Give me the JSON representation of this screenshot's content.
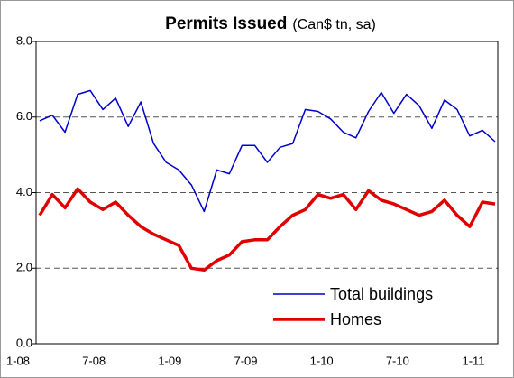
{
  "chart_data": {
    "type": "line",
    "title": "Permits Issued",
    "subtitle": "(Can$ tn, sa)",
    "categories": [
      "1-08",
      null,
      null,
      null,
      null,
      null,
      "7-08",
      null,
      null,
      null,
      null,
      null,
      "1-09",
      null,
      null,
      null,
      null,
      null,
      "7-09",
      null,
      null,
      null,
      null,
      null,
      "1-10",
      null,
      null,
      null,
      null,
      null,
      "7-10",
      null,
      null,
      null,
      null,
      null,
      "1-11"
    ],
    "series": [
      {
        "name": "Total buildings",
        "color": "#0000cc",
        "values": [
          5.9,
          6.05,
          5.6,
          6.6,
          6.7,
          6.2,
          6.5,
          5.75,
          6.4,
          5.3,
          4.8,
          4.6,
          4.2,
          3.5,
          4.6,
          4.5,
          5.25,
          5.25,
          4.8,
          5.2,
          5.3,
          6.2,
          6.15,
          5.95,
          5.6,
          5.45,
          6.15,
          6.65,
          6.1,
          6.6,
          6.3,
          5.7,
          6.45,
          6.2,
          5.5,
          5.65,
          5.35
        ]
      },
      {
        "name": "Homes",
        "color": "#e00000",
        "values": [
          3.4,
          3.95,
          3.6,
          4.1,
          3.75,
          3.55,
          3.75,
          3.4,
          3.1,
          2.9,
          2.75,
          2.6,
          2.0,
          1.95,
          2.2,
          2.35,
          2.7,
          2.75,
          2.75,
          3.1,
          3.4,
          3.55,
          3.95,
          3.85,
          3.95,
          3.55,
          4.05,
          3.8,
          3.7,
          3.55,
          3.4,
          3.5,
          3.8,
          3.4,
          3.1,
          3.75,
          3.7
        ]
      }
    ],
    "ylim": [
      0,
      8
    ],
    "yticks": [
      {
        "value": 0,
        "label": "0.0"
      },
      {
        "value": 2,
        "label": "2.0"
      },
      {
        "value": 4,
        "label": "4.0"
      },
      {
        "value": 6,
        "label": "6.0"
      },
      {
        "value": 8,
        "label": "8.0"
      }
    ],
    "grid": true,
    "legend": "lower right"
  }
}
